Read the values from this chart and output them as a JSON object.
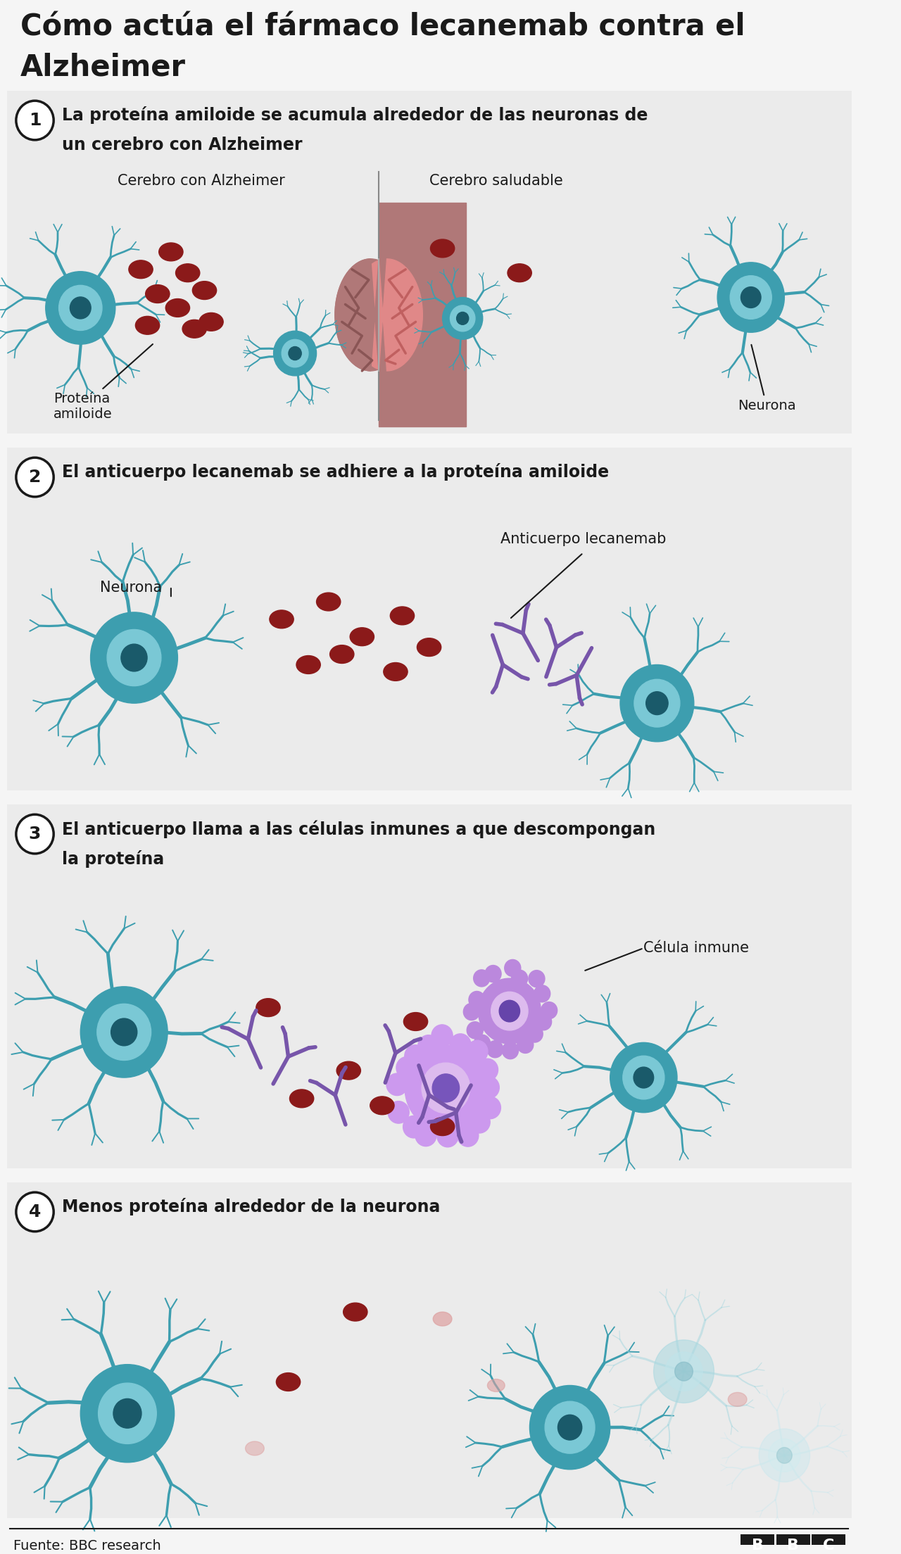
{
  "title_line1": "Cómo actúa el fármaco lecanemab contra el",
  "title_line2": "Alzheimer",
  "bg": "#f5f5f5",
  "panel_bg": "#ebebeb",
  "black": "#1a1a1a",
  "teal": "#3d9eaf",
  "teal_mid": "#5ab5c5",
  "teal_light": "#a8d8e0",
  "teal_pale": "#c8e8ee",
  "teal_very_pale": "#d8eef2",
  "axon_pink": "#b8848e",
  "axon_seg": "#c89aa4",
  "axon_teal": "#a0ccd4",
  "axon_seg_teal": "#b8dce4",
  "dark_red": "#8b1a1a",
  "brain_left": "#b07878",
  "brain_right": "#e08888",
  "brain_wrinkle_l": "#8a5555",
  "brain_wrinkle_r": "#c06060",
  "purple_ab": "#7755aa",
  "purple_cell": "#aa80cc",
  "purple_cell_dark": "#6644aa",
  "source_text": "Fuente: BBC research",
  "s1_label1": "Cerebro con Alzheimer",
  "s1_label2": "Cerebro saludable",
  "s1_ann1_text": "Proteína\namiloide",
  "s1_ann2_text": "Neurona",
  "s2_title": "El anticuerpo lecanemab se adhiere a la proteína amiloide",
  "s2_label1": "Neurona",
  "s2_label2": "Anticuerpo lecanemab",
  "s3_title_l1": "El anticuerpo llama a las células inmunes a que descompongan",
  "s3_title_l2": "la proteína",
  "s3_label": "Célula inmune",
  "s4_title": "Menos proteína alrededor de la neurona"
}
